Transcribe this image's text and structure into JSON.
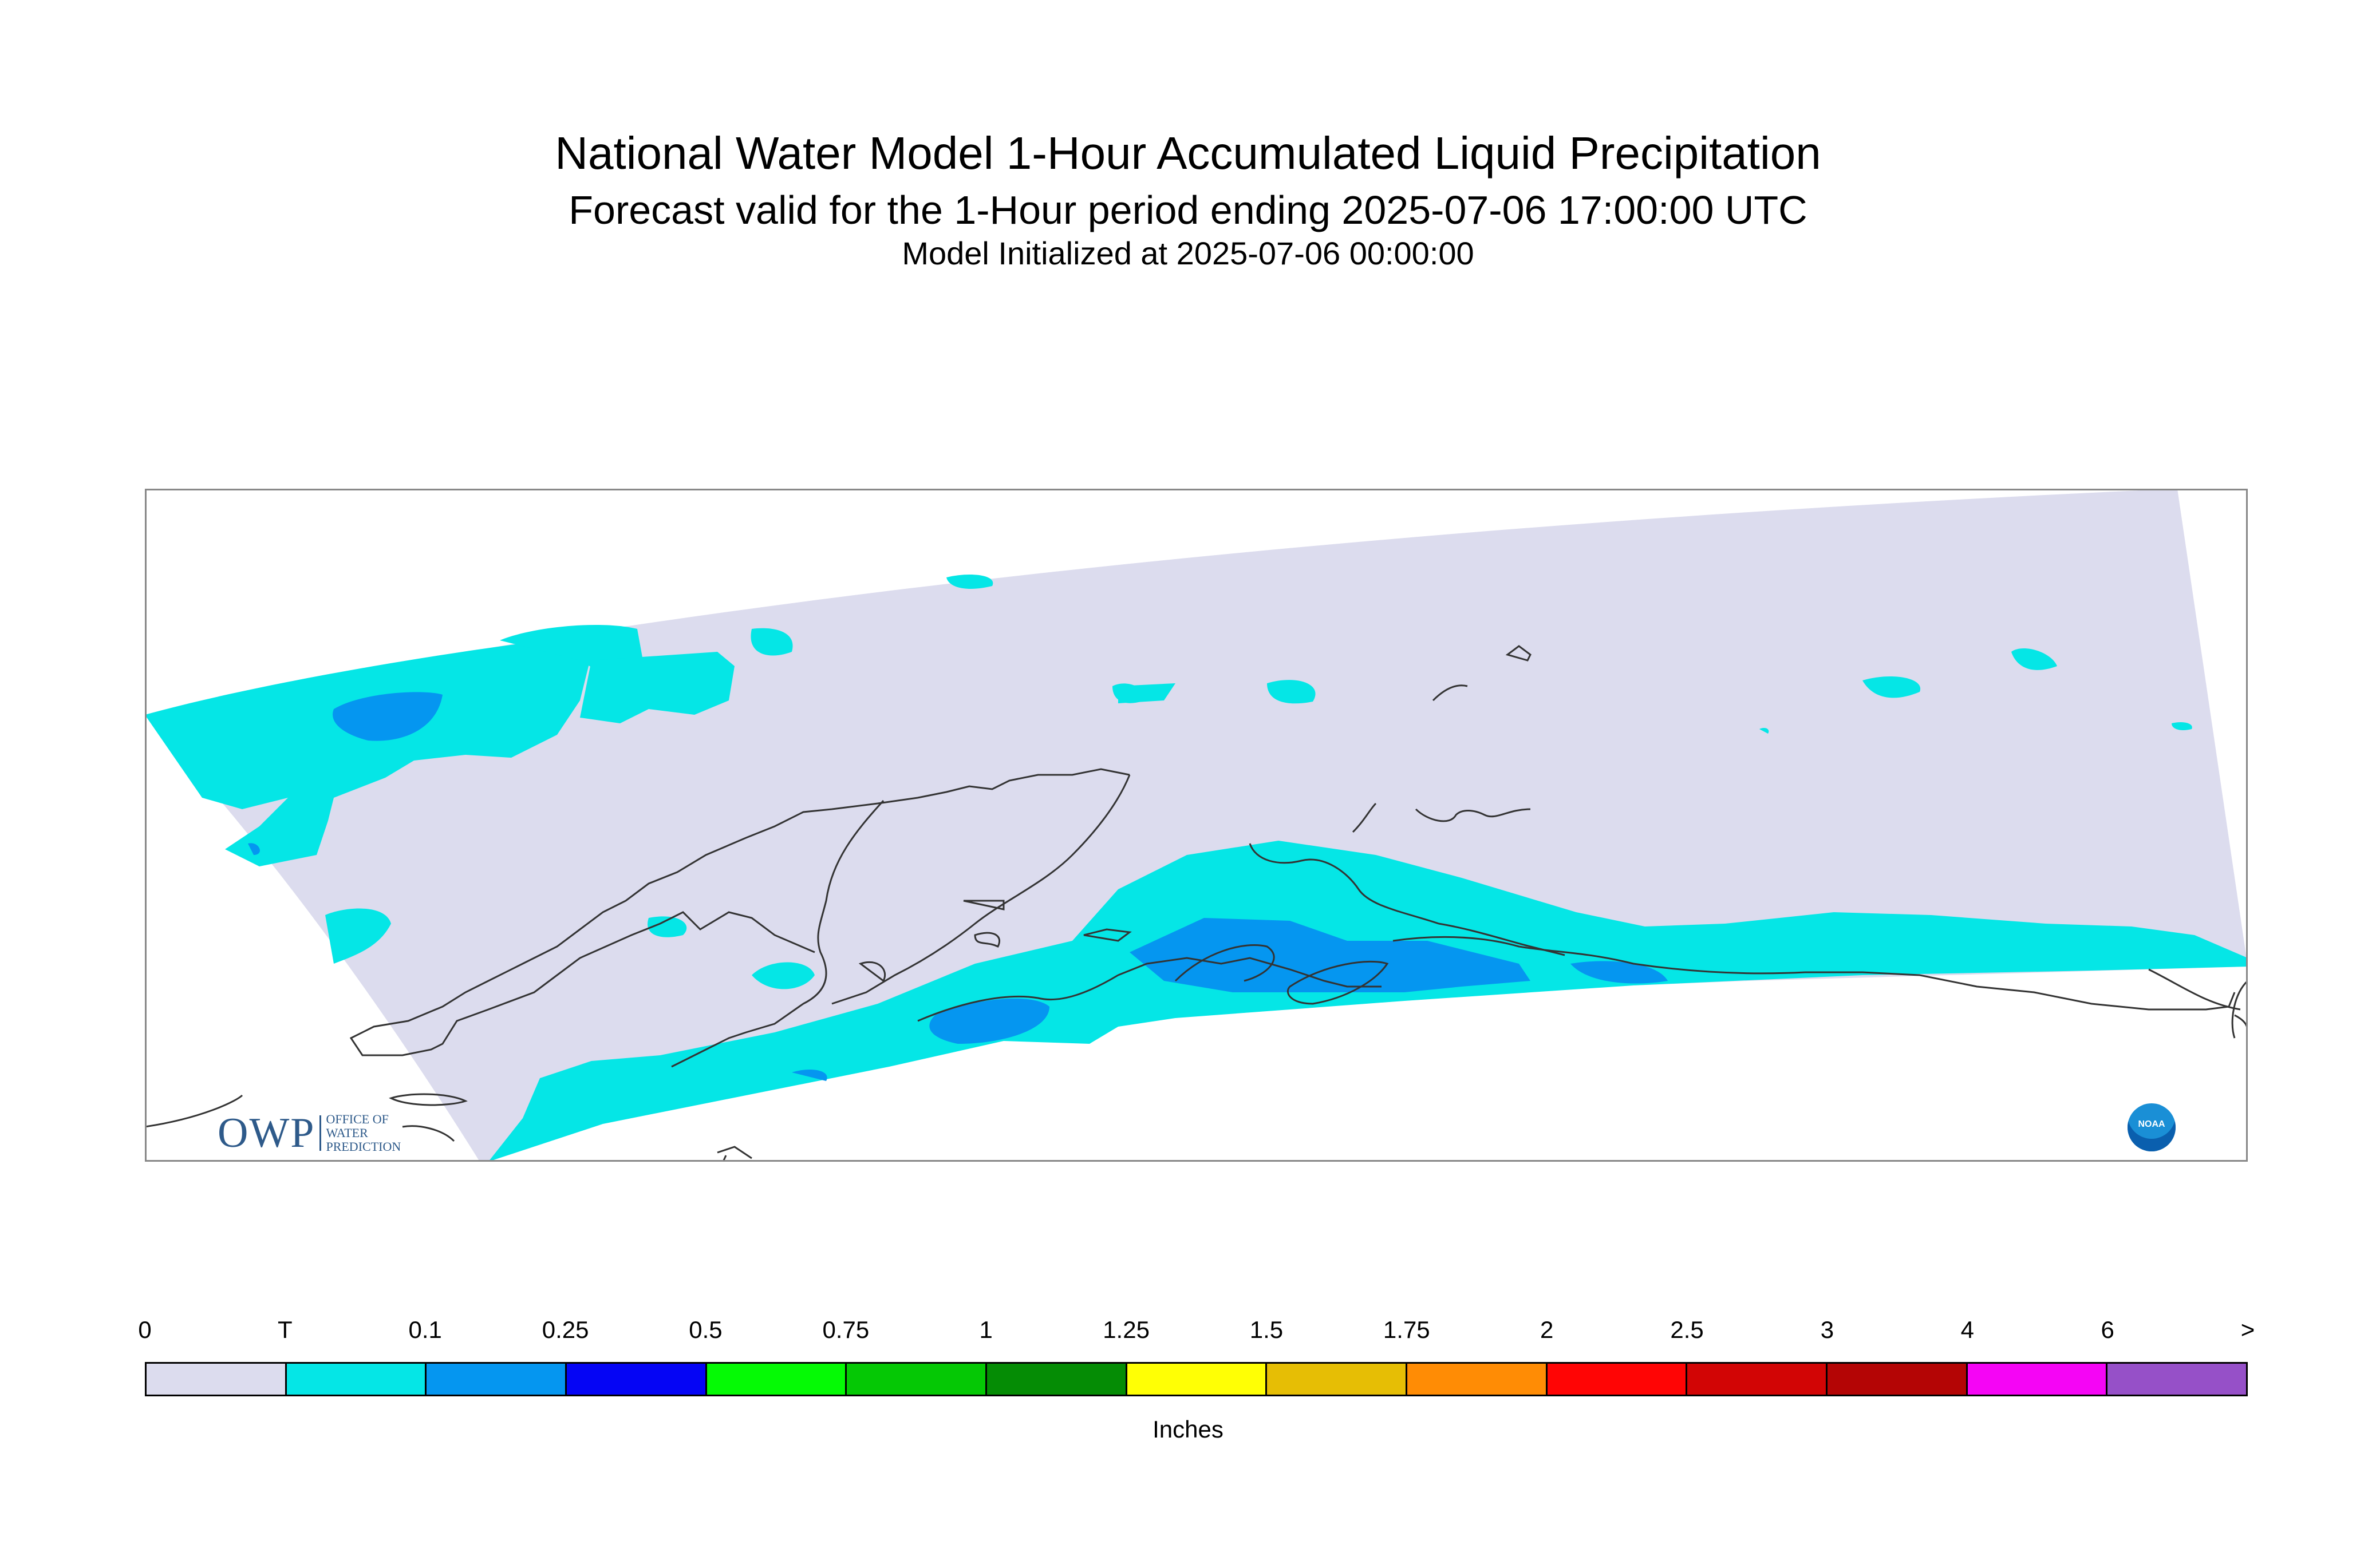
{
  "header": {
    "title": "National Water Model 1-Hour Accumulated Liquid Precipitation",
    "subtitle": "Forecast valid for the 1-Hour period ending 2025-07-06 17:00:00 UTC",
    "init": "Model Initialized at 2025-07-06 00:00:00"
  },
  "logos": {
    "owp_mark": "OWP",
    "owp_text": "OFFICE OF WATER PREDICTION",
    "noaa_mark": "NOAA"
  },
  "colorbar": {
    "labels": [
      "0",
      "T",
      "0.1",
      "0.25",
      "0.5",
      "0.75",
      "1",
      "1.25",
      "1.5",
      "1.75",
      "2",
      "2.5",
      "3",
      "4",
      "6",
      ">"
    ],
    "colors": [
      "#dcdcee",
      "#05e6e6",
      "#0596f0",
      "#0505f5",
      "#05fa05",
      "#05c805",
      "#058c05",
      "#ffff05",
      "#e6be05",
      "#ff8c05",
      "#ff0505",
      "#d20505",
      "#b40505",
      "#f505f5",
      "#9650c8"
    ],
    "units": "Inches"
  },
  "map": {
    "colors": {
      "no_data": "#ffffff",
      "zero": "#dcdcee",
      "trace": "#05e6e6",
      "light": "#0596f0",
      "coast": "#333333",
      "frame": "#888888"
    }
  }
}
